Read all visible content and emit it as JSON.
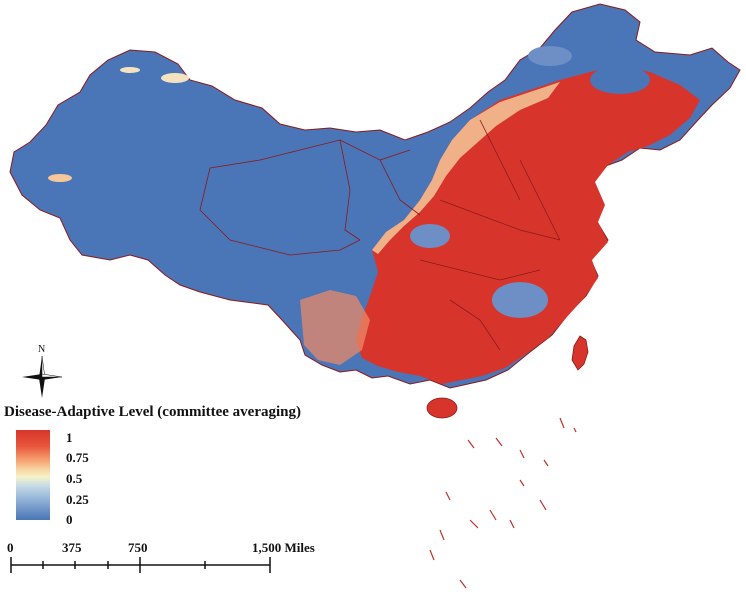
{
  "legend": {
    "title": "Disease-Adaptive Level (committee averaging)",
    "ticks": [
      "1",
      "0.75",
      "0.5",
      "0.25",
      "0"
    ],
    "colors": {
      "high": "#d7352b",
      "mid": "#f5f2c8",
      "low": "#4a75b6"
    }
  },
  "north_arrow": {
    "label": "N",
    "icon": "compass-rose-icon"
  },
  "scale_bar": {
    "labels": [
      "0",
      "375",
      "750",
      "1,500 Miles"
    ]
  },
  "map": {
    "region": "China",
    "colors": {
      "adaptive_high": "#d7352b",
      "adaptive_low": "#4a75b6",
      "transition": "#f5d3a0",
      "boundary": "#8b1a1a"
    }
  }
}
